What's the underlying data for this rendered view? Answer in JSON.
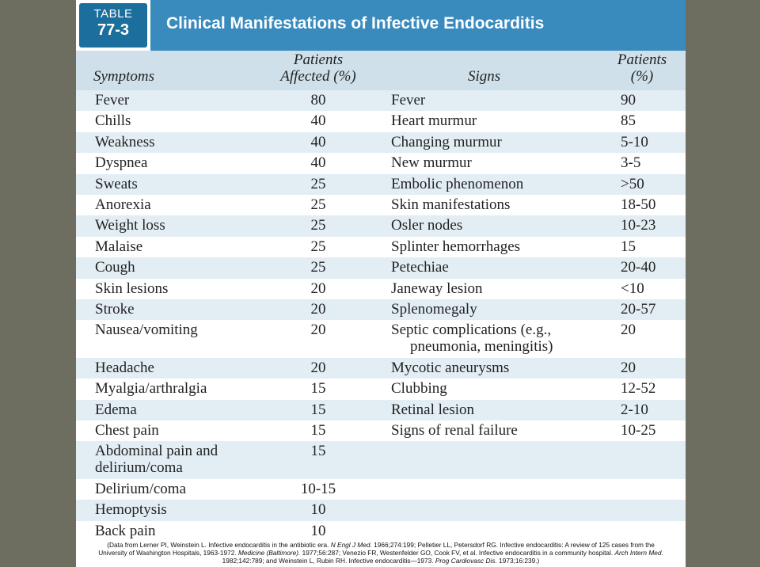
{
  "table": {
    "tag_word": "TABLE",
    "tag_number": "77-3",
    "title": "Clinical Manifestations of Infective Endocarditis"
  },
  "headers": {
    "symptoms": "Symptoms",
    "patients_affected_1": "Patients",
    "patients_affected_2": "Affected (%)",
    "signs": "Signs",
    "patients_pct_1": "Patients",
    "patients_pct_2": "(%)"
  },
  "rows": [
    {
      "symptom": "Fever",
      "sym_pct": "80",
      "sign": "Fever",
      "sign_pct": "90"
    },
    {
      "symptom": "Chills",
      "sym_pct": "40",
      "sign": "Heart murmur",
      "sign_pct": "85"
    },
    {
      "symptom": "Weakness",
      "sym_pct": "40",
      "sign": "Changing murmur",
      "sign_pct": "5-10"
    },
    {
      "symptom": "Dyspnea",
      "sym_pct": "40",
      "sign": "New murmur",
      "sign_pct": "3-5"
    },
    {
      "symptom": "Sweats",
      "sym_pct": "25",
      "sign": "Embolic phenomenon",
      "sign_pct": ">50"
    },
    {
      "symptom": "Anorexia",
      "sym_pct": "25",
      "sign": "Skin manifestations",
      "sign_pct": "18-50"
    },
    {
      "symptom": "Weight loss",
      "sym_pct": "25",
      "sign": "Osler nodes",
      "sign_pct": "10-23"
    },
    {
      "symptom": "Malaise",
      "sym_pct": "25",
      "sign": "Splinter hemorrhages",
      "sign_pct": "15"
    },
    {
      "symptom": "Cough",
      "sym_pct": "25",
      "sign": "Petechiae",
      "sign_pct": "20-40"
    },
    {
      "symptom": "Skin lesions",
      "sym_pct": "20",
      "sign": "Janeway lesion",
      "sign_pct": "<10"
    },
    {
      "symptom": "Stroke",
      "sym_pct": "20",
      "sign": "Splenomegaly",
      "sign_pct": "20-57"
    },
    {
      "symptom": "Nausea/vomiting",
      "sym_pct": "20",
      "sign": "Septic complications (e.g.,",
      "sign_2": "pneumonia, meningitis)",
      "sign_pct": "20"
    },
    {
      "symptom": "Headache",
      "sym_pct": "20",
      "sign": "Mycotic aneurysms",
      "sign_pct": "20"
    },
    {
      "symptom": "Myalgia/arthralgia",
      "sym_pct": "15",
      "sign": "Clubbing",
      "sign_pct": "12-52"
    },
    {
      "symptom": "Edema",
      "sym_pct": "15",
      "sign": "Retinal lesion",
      "sign_pct": "2-10"
    },
    {
      "symptom": "Chest pain",
      "sym_pct": "15",
      "sign": "Signs of renal failure",
      "sign_pct": "10-25"
    },
    {
      "symptom": "Abdominal pain and",
      "symptom_2": "delirium/coma",
      "sym_pct": "15",
      "sign": "",
      "sign_pct": ""
    },
    {
      "symptom": "Delirium/coma",
      "sym_pct": "10-15",
      "sign": "",
      "sign_pct": ""
    },
    {
      "symptom": "Hemoptysis",
      "sym_pct": "10",
      "sign": "",
      "sign_pct": ""
    },
    {
      "symptom": "Back pain",
      "sym_pct": "10",
      "sign": "",
      "sign_pct": ""
    }
  ],
  "citation": {
    "line1_a": "(Data from Lerner PI, Weinstein L. Infective endocarditis in the antibiotic era. ",
    "line1_b": "N Engl J Med.",
    "line1_c": " 1966;274:199; Pelletier LL, Petersdorf RG. Infective endocarditis: A review of 125 cases from the",
    "line2_a": "University of Washington Hospitals, 1963-1972. ",
    "line2_b": "Medicine (Baltimore).",
    "line2_c": " 1977;56:287; Venezio FR, Westenfelder GO, Cook FV, et al. Infective endocarditis in a community hospital. ",
    "line2_d": "Arch Intern Med.",
    "line3_a": "1982;142:789; and Weinstein L, Rubin RH. Infective endocarditis—1973. ",
    "line3_b": "Prog Cardiovasc Dis.",
    "line3_c": " 1973;16:239.)"
  }
}
